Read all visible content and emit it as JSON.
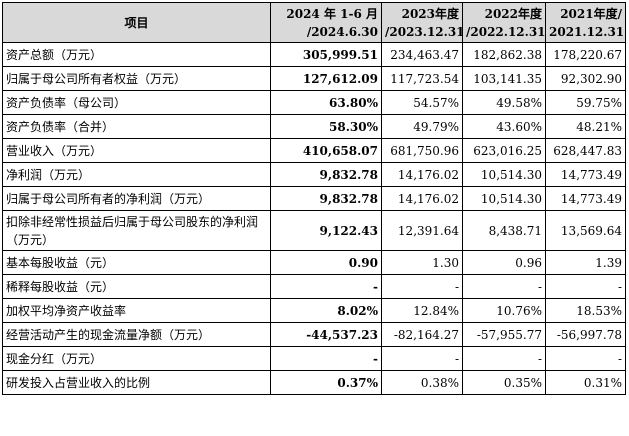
{
  "headers": [
    {
      "line1": "项目",
      "line2": ""
    },
    {
      "line1": "2024 年 1-6 月",
      "line2": "/2024.6.30"
    },
    {
      "line1": "2023年度",
      "line2": "/2023.12.31"
    },
    {
      "line1": "2022年度",
      "line2": "/2022.12.31"
    },
    {
      "line1": "2021年度/",
      "line2": "2021.12.31"
    }
  ],
  "rows": [
    {
      "label": "资产总额（万元）",
      "values": [
        "305,999.51",
        "234,463.47",
        "182,862.38",
        "178,220.67"
      ]
    },
    {
      "label": "归属于母公司所有者权益（万元）",
      "values": [
        "127,612.09",
        "117,723.54",
        "103,141.35",
        "92,302.90"
      ]
    },
    {
      "label": "资产负债率（母公司）",
      "values": [
        "63.80%",
        "54.57%",
        "49.58%",
        "59.75%"
      ]
    },
    {
      "label": "资产负债率（合并）",
      "values": [
        "58.30%",
        "49.79%",
        "43.60%",
        "48.21%"
      ]
    },
    {
      "label": "营业收入（万元）",
      "values": [
        "410,658.07",
        "681,750.96",
        "623,016.25",
        "628,447.83"
      ]
    },
    {
      "label": "净利润（万元）",
      "values": [
        "9,832.78",
        "14,176.02",
        "10,514.30",
        "14,773.49"
      ]
    },
    {
      "label": "归属于母公司所有者的净利润（万元）",
      "values": [
        "9,832.78",
        "14,176.02",
        "10,514.30",
        "14,773.49"
      ]
    },
    {
      "label": "扣除非经常性损益后归属于母公司股东的净利润（万元）",
      "values": [
        "9,122.43",
        "12,391.64",
        "8,438.71",
        "13,569.64"
      ],
      "tall": true
    },
    {
      "label": "基本每股收益（元）",
      "values": [
        "0.90",
        "1.30",
        "0.96",
        "1.39"
      ]
    },
    {
      "label": "稀释每股收益（元）",
      "values": [
        "-",
        "-",
        "-",
        "-"
      ]
    },
    {
      "label": "加权平均净资产收益率",
      "values": [
        "8.02%",
        "12.84%",
        "10.76%",
        "18.53%"
      ]
    },
    {
      "label": "经营活动产生的现金流量净额（万元）",
      "values": [
        "-44,537.23",
        "-82,164.27",
        "-57,955.77",
        "-56,997.78"
      ]
    },
    {
      "label": "现金分红（万元）",
      "values": [
        "-",
        "-",
        "-",
        "-"
      ]
    },
    {
      "label": "研发投入占营业收入的比例",
      "values": [
        "0.37%",
        "0.38%",
        "0.35%",
        "0.31%"
      ]
    }
  ]
}
